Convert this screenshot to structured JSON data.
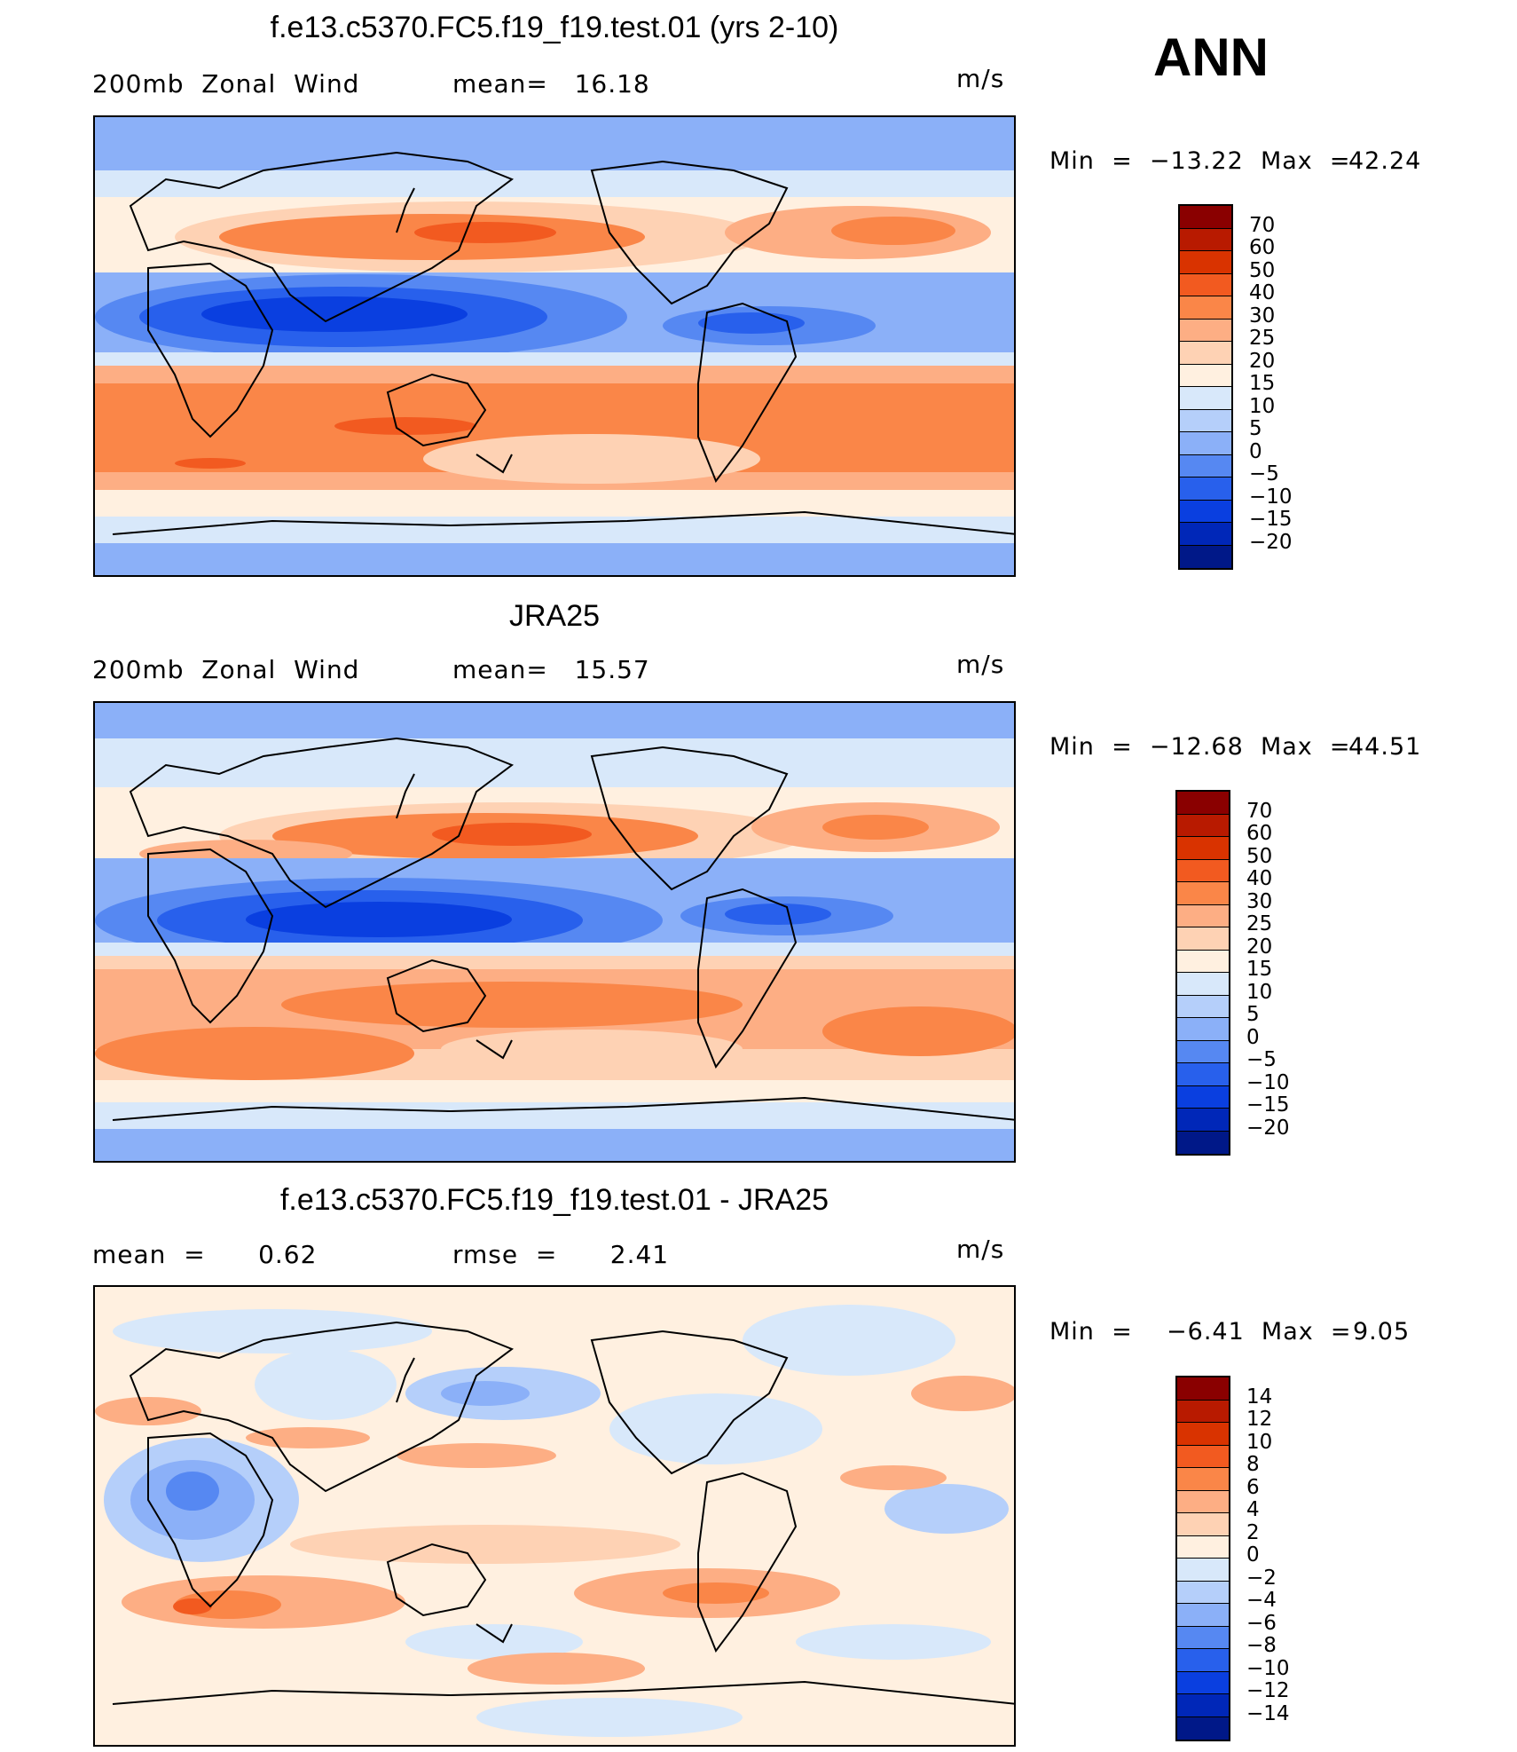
{
  "header": {
    "season": "ANN"
  },
  "panels": [
    {
      "title": "f.e13.c5370.FC5.f19_f19.test.01 (yrs 2-10)",
      "left_text": "200mb  Zonal  Wind",
      "mid_text": "mean=   16.18",
      "units": "m/s",
      "min_label": "Min  =  −13.22  Max  =",
      "max_value": "42.24",
      "colorbar": {
        "labels": [
          "70",
          "60",
          "50",
          "40",
          "30",
          "25",
          "20",
          "15",
          "10",
          "5",
          "0",
          "−5",
          "−10",
          "−15",
          "−20"
        ],
        "colors": [
          "#8a0000",
          "#b81a00",
          "#d93300",
          "#f25a20",
          "#fa8648",
          "#fdae84",
          "#fed2b4",
          "#fff0e0",
          "#d8e8fa",
          "#b5cffa",
          "#8bb0f8",
          "#5688f2",
          "#2860ec",
          "#0a3fe0",
          "#0027b8",
          "#001888"
        ]
      }
    },
    {
      "title": "JRA25",
      "left_text": "200mb  Zonal  Wind",
      "mid_text": "mean=   15.57",
      "units": "m/s",
      "min_label": "Min  =  −12.68  Max  =",
      "max_value": "44.51",
      "colorbar": {
        "labels": [
          "70",
          "60",
          "50",
          "40",
          "30",
          "25",
          "20",
          "15",
          "10",
          "5",
          "0",
          "−5",
          "−10",
          "−15",
          "−20"
        ],
        "colors": [
          "#8a0000",
          "#b81a00",
          "#d93300",
          "#f25a20",
          "#fa8648",
          "#fdae84",
          "#fed2b4",
          "#fff0e0",
          "#d8e8fa",
          "#b5cffa",
          "#8bb0f8",
          "#5688f2",
          "#2860ec",
          "#0a3fe0",
          "#0027b8",
          "#001888"
        ]
      }
    },
    {
      "title": "f.e13.c5370.FC5.f19_f19.test.01 - JRA25",
      "left_text": "mean  =      0.62",
      "mid_text": "rmse  =      2.41",
      "units": "m/s",
      "min_label": "Min  =    −6.41  Max  =",
      "max_value": "9.05",
      "colorbar": {
        "labels": [
          "14",
          "12",
          "10",
          "8",
          "6",
          "4",
          "2",
          "0",
          "−2",
          "−4",
          "−6",
          "−8",
          "−10",
          "−12",
          "−14"
        ],
        "colors": [
          "#8a0000",
          "#b81a00",
          "#d93300",
          "#f25a20",
          "#fa8648",
          "#fdae84",
          "#fed2b4",
          "#fff0e0",
          "#d8e8fa",
          "#b5cffa",
          "#8bb0f8",
          "#5688f2",
          "#2860ec",
          "#0a3fe0",
          "#0027b8",
          "#001888"
        ]
      }
    }
  ]
}
